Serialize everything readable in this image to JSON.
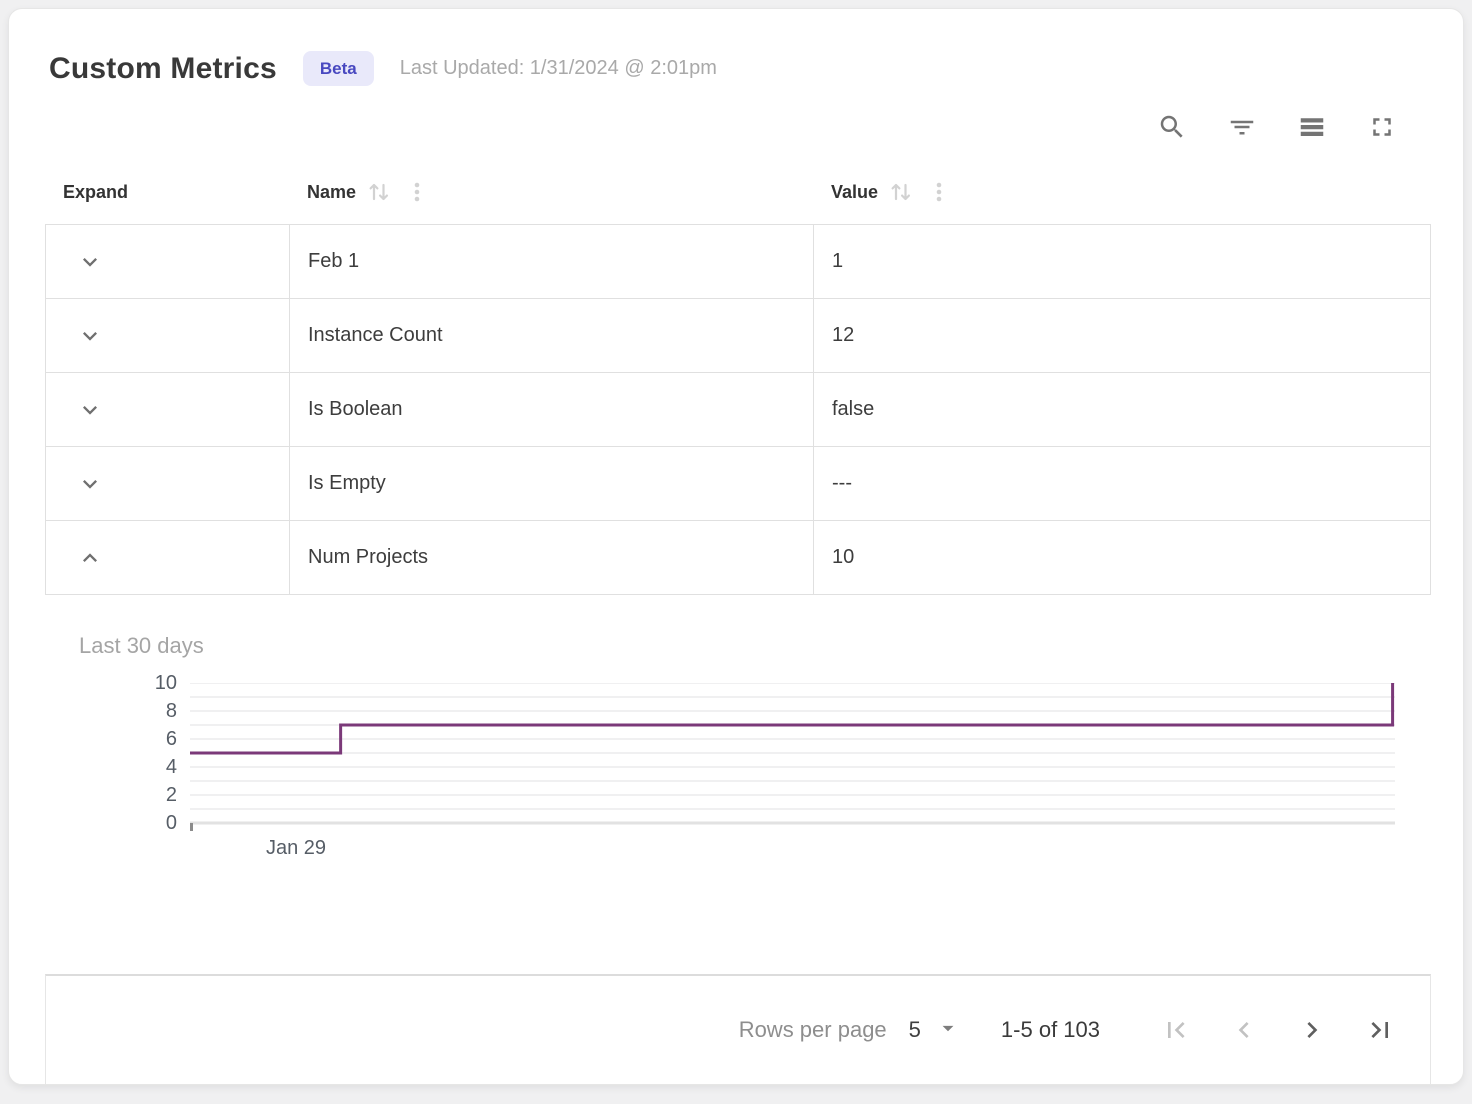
{
  "page": {
    "title": "Custom Metrics",
    "badge_label": "Beta",
    "last_updated": "Last Updated: 1/31/2024 @ 2:01pm"
  },
  "toolbar": {
    "icons": [
      "search-icon",
      "filter-icon",
      "density-icon",
      "fullscreen-icon"
    ]
  },
  "table": {
    "columns": [
      {
        "label": "Expand",
        "sortable": false
      },
      {
        "label": "Name",
        "sortable": true
      },
      {
        "label": "Value",
        "sortable": true
      }
    ],
    "rows": [
      {
        "name": "Feb 1",
        "value": "1",
        "expanded": false
      },
      {
        "name": "Instance Count",
        "value": "12",
        "expanded": false
      },
      {
        "name": "Is Boolean",
        "value": "false",
        "expanded": false
      },
      {
        "name": "Is Empty",
        "value": "---",
        "expanded": false
      },
      {
        "name": "Num Projects",
        "value": "10",
        "expanded": true
      }
    ]
  },
  "chart_data": {
    "type": "line",
    "step": true,
    "metric": "Num Projects",
    "title": "Last 30 days",
    "x_ticks": [
      "Jan 29"
    ],
    "y_ticks": [
      10,
      8,
      6,
      4,
      2,
      0
    ],
    "ylim": [
      0,
      10
    ],
    "gridline_step": 1,
    "points": [
      {
        "x_pct": 0,
        "y": 5
      },
      {
        "x_pct": 12.5,
        "y": 5
      },
      {
        "x_pct": 12.5,
        "y": 7
      },
      {
        "x_pct": 99.8,
        "y": 7
      },
      {
        "x_pct": 99.8,
        "y": 10
      }
    ]
  },
  "footer": {
    "rows_per_page_label": "Rows per page",
    "rows_per_page_value": "5",
    "range_label": "1-5 of 103",
    "first_disabled": true,
    "prev_disabled": true,
    "next_disabled": false,
    "last_disabled": false
  },
  "colors": {
    "badge_bg": "#e9e9fa",
    "badge_text": "#4848c0",
    "line": "#7b3979",
    "gridline": "#f0f0f1",
    "axis_line": "#e2e2e2",
    "border": "#e0e0e0"
  }
}
